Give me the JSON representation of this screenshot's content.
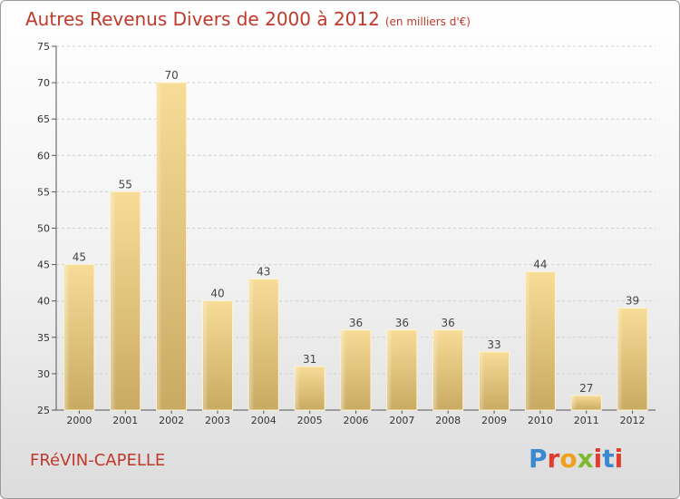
{
  "chart_data": {
    "type": "bar",
    "title": "Autres Revenus Divers de 2000 à 2012",
    "subtitle": "(en milliers d'€)",
    "categories": [
      "2000",
      "2001",
      "2002",
      "2003",
      "2004",
      "2005",
      "2006",
      "2007",
      "2008",
      "2009",
      "2010",
      "2011",
      "2012"
    ],
    "values": [
      45,
      55,
      70,
      40,
      43,
      31,
      36,
      36,
      36,
      33,
      44,
      27,
      39
    ],
    "ylim": [
      25,
      75
    ],
    "yticks": [
      25,
      30,
      35,
      40,
      45,
      50,
      55,
      60,
      65,
      70,
      75
    ],
    "xlabel": "",
    "ylabel": "",
    "grid": true,
    "bar_color": "#e6c77f"
  },
  "footer": {
    "town": "FRéVIN-CAPELLE",
    "brand_letters": [
      "P",
      "r",
      "o",
      "x",
      "i",
      "t",
      "i"
    ]
  }
}
